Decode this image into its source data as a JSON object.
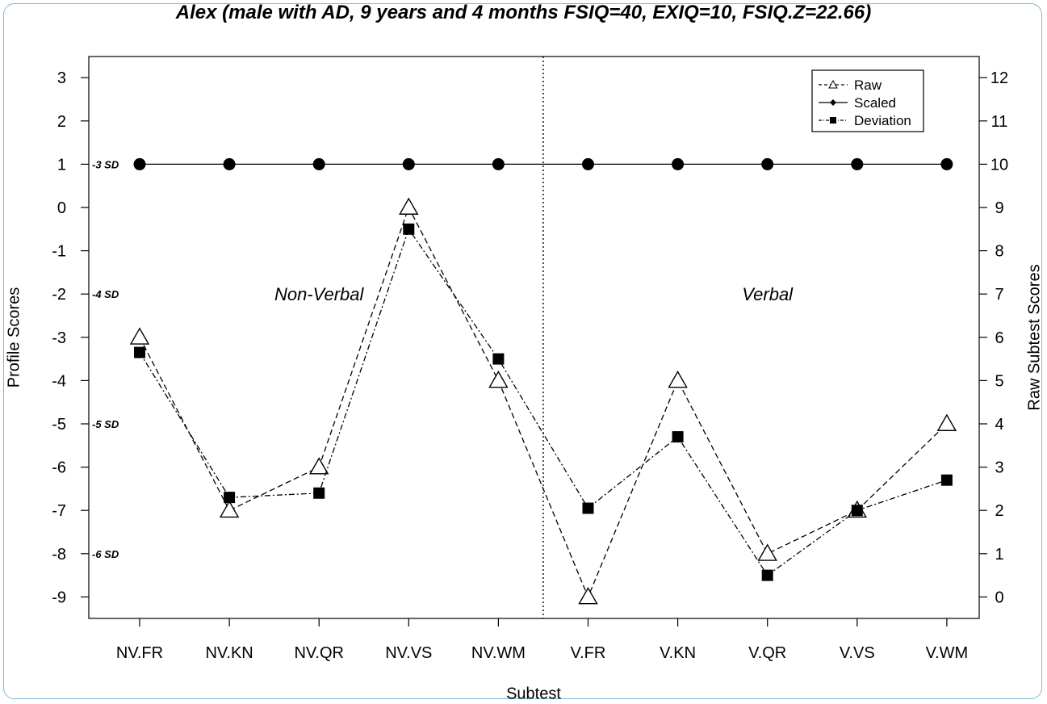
{
  "chart_data": {
    "type": "line",
    "title": "Alex (male with AD, 9 years and 4 months FSIQ=40, EXIQ=10, FSIQ.Z=22.66)",
    "xlabel": "Subtest",
    "ylabel": "Profile Scores",
    "ylabel_right": "Raw Subtest Scores",
    "categories": [
      "NV.FR",
      "NV.KN",
      "NV.QR",
      "NV.VS",
      "NV.WM",
      "V.FR",
      "V.KN",
      "V.QR",
      "V.VS",
      "V.WM"
    ],
    "ylim": [
      -9.5,
      3.5
    ],
    "y_ticks": [
      3,
      2,
      1,
      0,
      -1,
      -2,
      -3,
      -4,
      -5,
      -6,
      -7,
      -8,
      -9
    ],
    "y2_ticks": [
      12,
      11,
      10,
      9,
      8,
      7,
      6,
      5,
      4,
      3,
      2,
      1,
      0
    ],
    "series": [
      {
        "name": "Raw",
        "marker": "triangle-open",
        "dash": "dashed",
        "values": [
          -3.0,
          -7.0,
          -6.0,
          0.0,
          -4.0,
          -9.0,
          -4.0,
          -8.0,
          -7.0,
          -5.0
        ]
      },
      {
        "name": "Scaled",
        "marker": "circle-filled",
        "dash": "solid",
        "values": [
          1,
          1,
          1,
          1,
          1,
          1,
          1,
          1,
          1,
          1
        ]
      },
      {
        "name": "Deviation",
        "marker": "square-filled",
        "dash": "dotdash",
        "values": [
          -3.35,
          -6.7,
          -6.6,
          -0.5,
          -3.5,
          -6.95,
          -5.3,
          -8.5,
          -7.0,
          -6.3
        ]
      }
    ],
    "sd_labels": [
      {
        "text": "-3 SD",
        "y": 1
      },
      {
        "text": "-4 SD",
        "y": -2
      },
      {
        "text": "-5 SD",
        "y": -5
      },
      {
        "text": "-6 SD",
        "y": -8
      }
    ],
    "group_labels": [
      {
        "text": "Non-Verbal",
        "x": 2.0,
        "y": -2
      },
      {
        "text": "Verbal",
        "x": 7.0,
        "y": -2
      }
    ],
    "divider_x": 4.5,
    "legend_position": "top-right",
    "grid": false
  },
  "colors": {
    "frame": "#7fb8d8",
    "ink": "#000000"
  }
}
